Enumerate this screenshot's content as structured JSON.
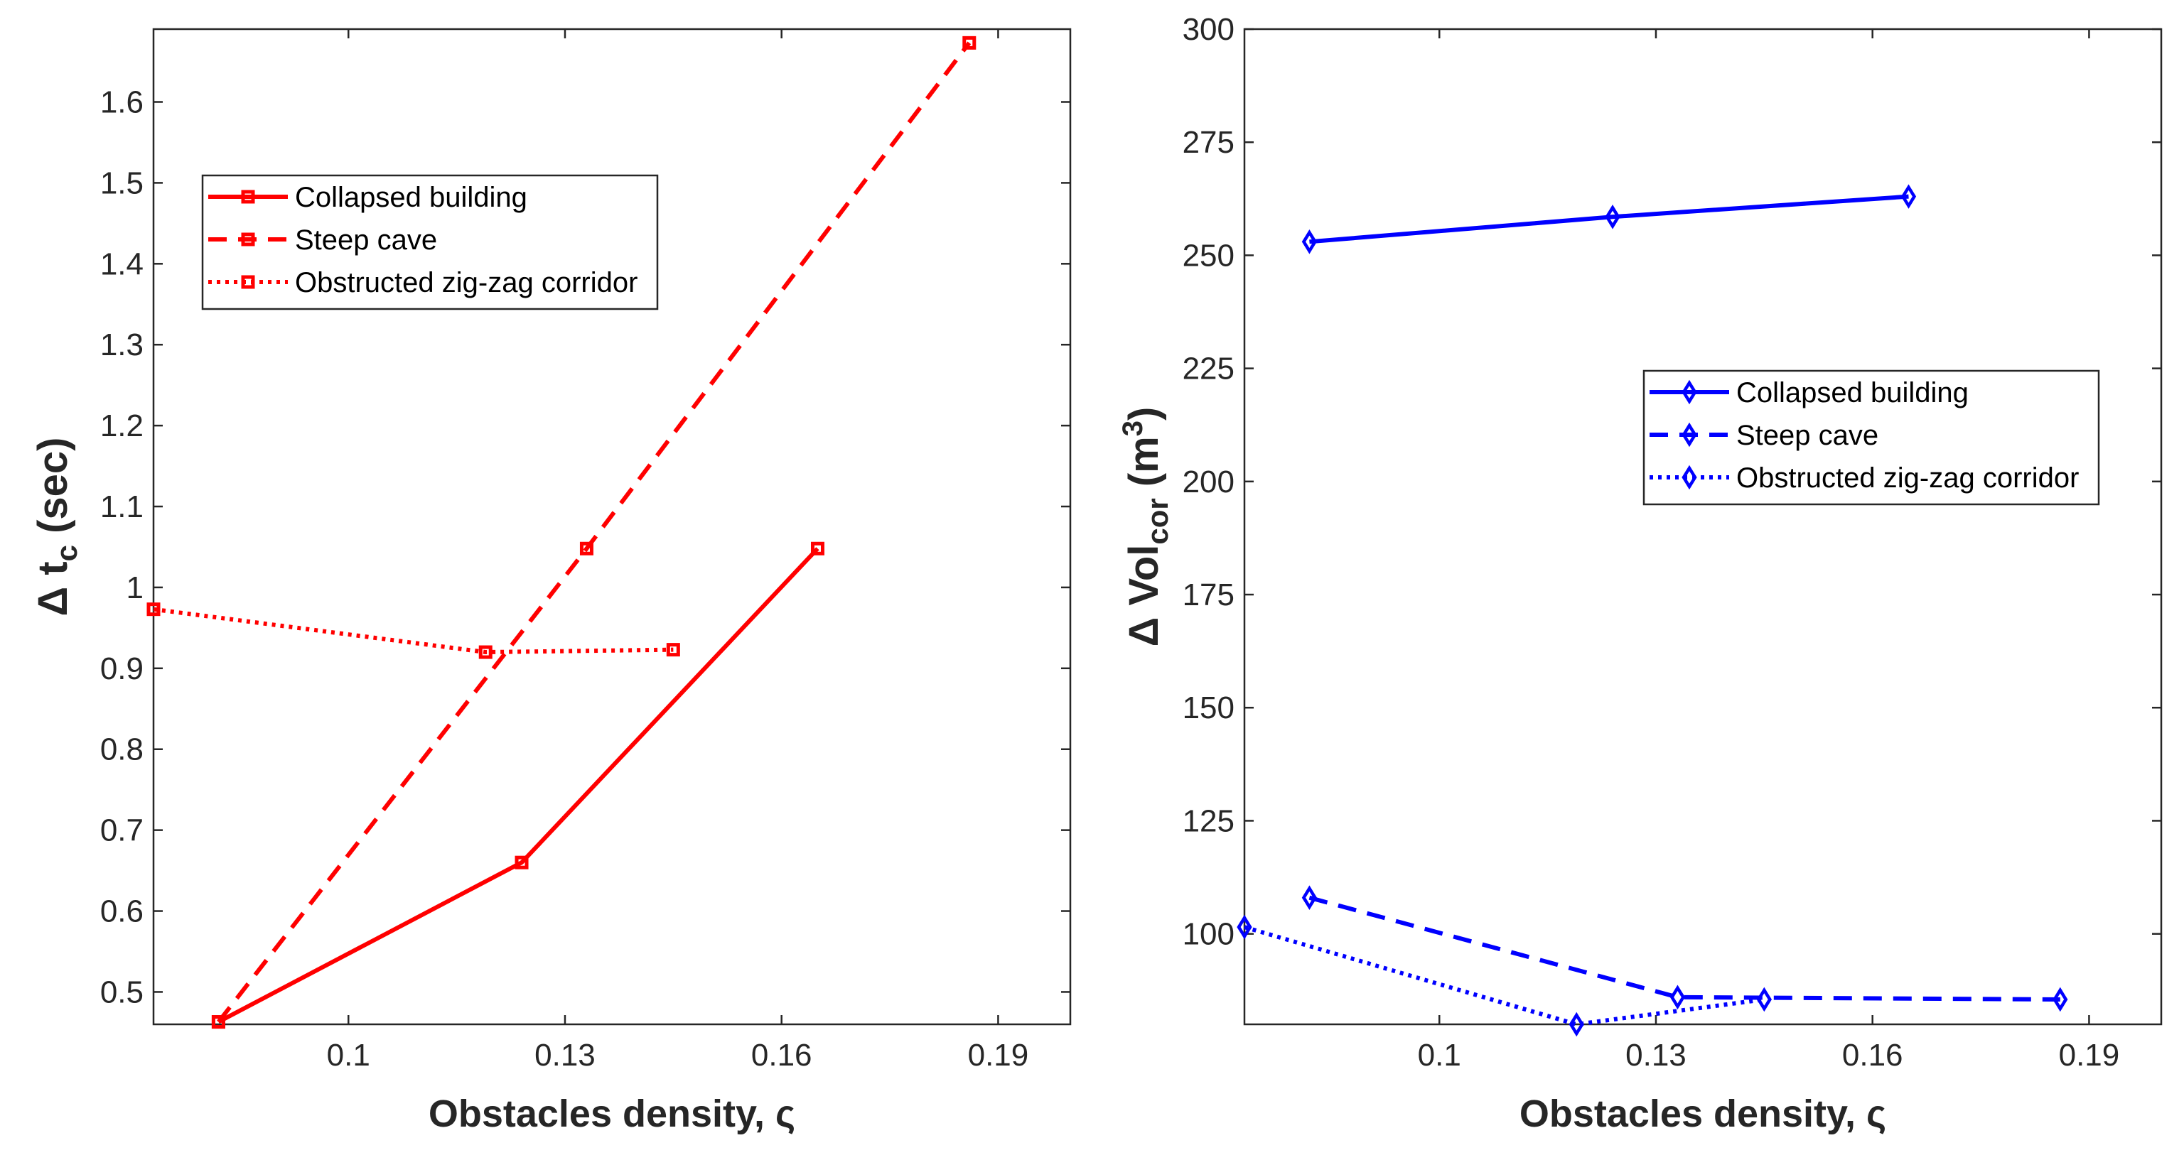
{
  "chart_data": [
    {
      "type": "line",
      "color": "#ff0000",
      "marker": "square",
      "xlabel": "Obstacles density, ς",
      "ylabel_prefix": "Δ t",
      "ylabel_sub": "c",
      "ylabel_suffix": " (sec)",
      "xlim": [
        0.073,
        0.2
      ],
      "ylim": [
        0.46,
        1.69
      ],
      "xticks": [
        0.1,
        0.13,
        0.16,
        0.19
      ],
      "xtick_labels": [
        "0.1",
        "0.13",
        "0.16",
        "0.19"
      ],
      "yticks": [
        0.5,
        0.6,
        0.7,
        0.8,
        0.9,
        1.0,
        1.1,
        1.2,
        1.3,
        1.4,
        1.5,
        1.6
      ],
      "ytick_labels": [
        "0.5",
        "0.6",
        "0.7",
        "0.8",
        "0.9",
        "1",
        "1.1",
        "1.2",
        "1.3",
        "1.4",
        "1.5",
        "1.6"
      ],
      "legend": "top-left",
      "series": [
        {
          "name": "Collapsed building",
          "style": "solid",
          "x": [
            0.082,
            0.124,
            0.165
          ],
          "y": [
            0.463,
            0.66,
            1.048
          ]
        },
        {
          "name": "Steep cave",
          "style": "dashed",
          "x": [
            0.082,
            0.133,
            0.186
          ],
          "y": [
            0.463,
            1.048,
            1.673
          ]
        },
        {
          "name": "Obstructed zig-zag corridor",
          "style": "dotted",
          "x": [
            0.073,
            0.119,
            0.145
          ],
          "y": [
            0.973,
            0.92,
            0.923
          ]
        }
      ]
    },
    {
      "type": "line",
      "color": "#0000ff",
      "marker": "diamond",
      "xlabel": "Obstacles density, ς",
      "ylabel_prefix": "Δ Vol",
      "ylabel_sub": "cor",
      "ylabel_suffix": " (m",
      "ylabel_sup": "3",
      "ylabel_end": ")",
      "xlim": [
        0.073,
        0.2
      ],
      "ylim": [
        80,
        300
      ],
      "xticks": [
        0.1,
        0.13,
        0.16,
        0.19
      ],
      "xtick_labels": [
        "0.1",
        "0.13",
        "0.16",
        "0.19"
      ],
      "yticks": [
        100,
        125,
        150,
        175,
        200,
        225,
        250,
        275,
        300
      ],
      "ytick_labels": [
        "100",
        "125",
        "150",
        "175",
        "200",
        "225",
        "250",
        "275",
        "300"
      ],
      "legend": "center-right",
      "series": [
        {
          "name": "Collapsed building",
          "style": "solid",
          "x": [
            0.082,
            0.124,
            0.165
          ],
          "y": [
            253,
            258.5,
            263
          ]
        },
        {
          "name": "Steep cave",
          "style": "dashed",
          "x": [
            0.082,
            0.133,
            0.186
          ],
          "y": [
            108,
            86,
            85.5
          ]
        },
        {
          "name": "Obstructed zig-zag corridor",
          "style": "dotted",
          "x": [
            0.073,
            0.119,
            0.145
          ],
          "y": [
            101.5,
            80,
            85.5
          ]
        }
      ]
    }
  ]
}
